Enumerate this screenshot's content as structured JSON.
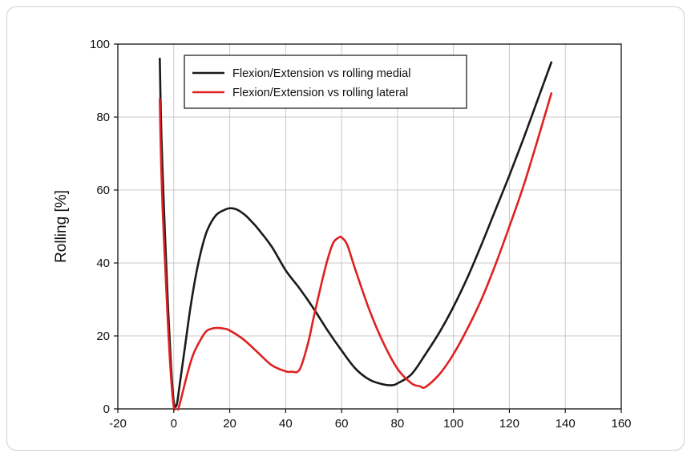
{
  "chart_data": {
    "type": "line",
    "title": "",
    "xlabel": "",
    "ylabel": "Rolling [%]",
    "xlim": [
      -20,
      160
    ],
    "ylim": [
      0,
      100
    ],
    "xticks": [
      "-20",
      "0",
      "20",
      "40",
      "60",
      "80",
      "100",
      "120",
      "140",
      "160"
    ],
    "yticks": [
      "0",
      "20",
      "40",
      "60",
      "80",
      "100"
    ],
    "grid": true,
    "legend_position": "top-center",
    "series": [
      {
        "name": "Flexion/Extension vs rolling medial",
        "color": "#1a1a1a",
        "x": [
          -5,
          -4.6,
          -4,
          -3,
          -2,
          -1,
          0,
          1,
          2,
          4,
          6,
          8,
          10,
          12,
          15,
          18,
          20,
          22,
          24,
          26,
          28,
          30,
          35,
          40,
          45,
          50,
          55,
          60,
          65,
          70,
          75,
          78,
          80,
          85,
          90,
          95,
          100,
          105,
          110,
          115,
          120,
          125,
          130,
          135
        ],
        "y": [
          96,
          80,
          65,
          45,
          27,
          12,
          2,
          1,
          6,
          17,
          28,
          37,
          44,
          49,
          53,
          54.5,
          55,
          54.8,
          54,
          52.8,
          51.2,
          49.5,
          44.5,
          38,
          33,
          27.5,
          21.5,
          16,
          11,
          8,
          6.7,
          6.5,
          7,
          9.5,
          15,
          21,
          28,
          36,
          45,
          54.5,
          64,
          74,
          84.5,
          95
        ]
      },
      {
        "name": "Flexion/Extension vs rolling lateral",
        "color": "#e02020",
        "x": [
          -5,
          -4.6,
          -4,
          -3,
          -2,
          -1,
          0,
          1,
          2,
          3,
          5,
          7,
          10,
          12,
          15,
          18,
          20,
          25,
          30,
          35,
          40,
          42,
          45,
          48,
          50,
          53,
          55,
          57,
          59,
          60,
          62,
          65,
          70,
          75,
          80,
          85,
          88,
          90,
          95,
          100,
          105,
          110,
          115,
          120,
          125,
          130,
          135
        ],
        "y": [
          85,
          70,
          55,
          38,
          22,
          9,
          0.5,
          -1,
          1,
          4,
          10,
          15,
          19.5,
          21.5,
          22.2,
          22,
          21.5,
          19,
          15.5,
          12,
          10.3,
          10.2,
          10.8,
          18,
          25,
          35,
          41,
          45.5,
          47,
          47,
          45,
          38,
          27,
          18,
          11,
          7,
          6.2,
          6,
          9.5,
          15,
          22,
          30,
          39.5,
          50,
          61,
          73.5,
          86.5
        ]
      }
    ]
  }
}
